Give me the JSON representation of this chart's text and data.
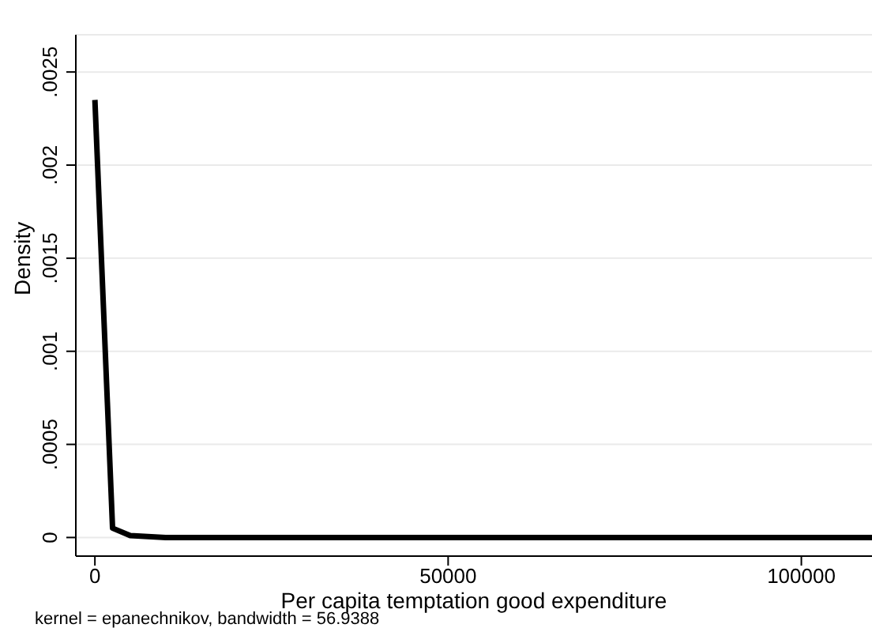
{
  "chart_data": {
    "type": "line",
    "xlabel": "Per capita temptation good expenditure",
    "ylabel": "Density",
    "annotations": [
      "kernel = epanechnikov, bandwidth = 56.9388"
    ],
    "x": [
      0,
      2500,
      5000,
      10000,
      20000,
      50000,
      110000
    ],
    "series": [
      {
        "color": "#000000",
        "values": [
          0.00235,
          5e-05,
          1e-05,
          0,
          0,
          0,
          0
        ]
      }
    ],
    "xlim": [
      -2700,
      110000
    ],
    "xticks": [
      0,
      50000,
      100000
    ],
    "ylim": [
      -0.0001,
      0.0027
    ],
    "yticks": [
      {
        "value": 0,
        "label": "0"
      },
      {
        "value": 0.0005,
        "label": ".0005"
      },
      {
        "value": 0.001,
        "label": ".001"
      },
      {
        "value": 0.0015,
        "label": ".0015"
      },
      {
        "value": 0.002,
        "label": ".002"
      },
      {
        "value": 0.0025,
        "label": ".0025"
      }
    ],
    "grid": "y",
    "legend": false,
    "marker": "none",
    "line_style": "solid"
  }
}
